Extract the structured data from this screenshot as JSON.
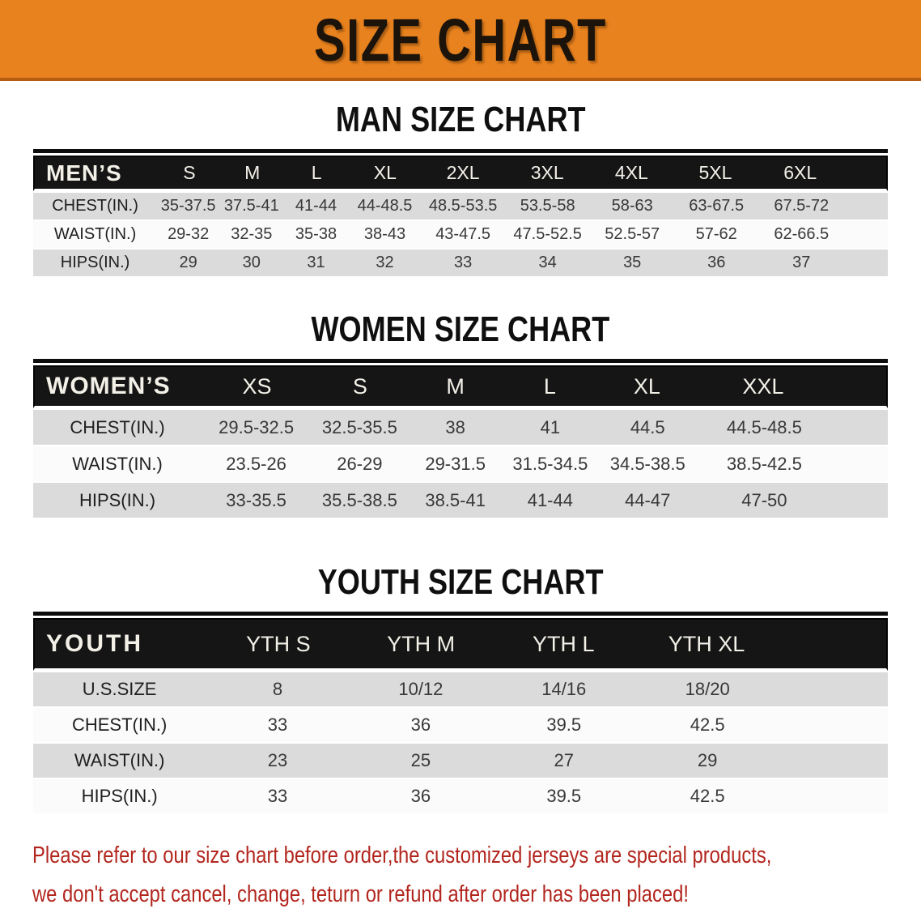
{
  "banner": {
    "title": "SIZE CHART"
  },
  "colors": {
    "banner_bg": "#E8821E",
    "banner_border": "#B45C10",
    "table_header_bg": "#151515",
    "stripe_gray": "#DBDBDB",
    "stripe_white": "#FBFBFB",
    "disclaimer_red": "#B2261E"
  },
  "man": {
    "heading": "MAN SIZE CHART",
    "label": "MEN’S",
    "sizes": [
      "S",
      "M",
      "L",
      "XL",
      "2XL",
      "3XL",
      "4XL",
      "5XL",
      "6XL"
    ],
    "rows": [
      {
        "label": "CHEST(IN.)",
        "values": [
          "35-37.5",
          "37.5-41",
          "41-44",
          "44-48.5",
          "48.5-53.5",
          "53.5-58",
          "58-63",
          "63-67.5",
          "67.5-72"
        ]
      },
      {
        "label": "WAIST(IN.)",
        "values": [
          "29-32",
          "32-35",
          "35-38",
          "38-43",
          "43-47.5",
          "47.5-52.5",
          "52.5-57",
          "57-62",
          "62-66.5"
        ]
      },
      {
        "label": "HIPS(IN.)",
        "values": [
          "29",
          "30",
          "31",
          "32",
          "33",
          "34",
          "35",
          "36",
          "37"
        ]
      }
    ]
  },
  "women": {
    "heading": "WOMEN SIZE CHART",
    "label": "WOMEN’S",
    "sizes": [
      "XS",
      "S",
      "M",
      "L",
      "XL",
      "XXL"
    ],
    "rows": [
      {
        "label": "CHEST(IN.)",
        "values": [
          "29.5-32.5",
          "32.5-35.5",
          "38",
          "41",
          "44.5",
          "44.5-48.5"
        ]
      },
      {
        "label": "WAIST(IN.)",
        "values": [
          "23.5-26",
          "26-29",
          "29-31.5",
          "31.5-34.5",
          "34.5-38.5",
          "38.5-42.5"
        ]
      },
      {
        "label": "HIPS(IN.)",
        "values": [
          "33-35.5",
          "35.5-38.5",
          "38.5-41",
          "41-44",
          "44-47",
          "47-50"
        ]
      }
    ]
  },
  "youth": {
    "heading": "YOUTH SIZE CHART",
    "label": "YOUTH",
    "sizes": [
      "YTH S",
      "YTH M",
      "YTH L",
      "YTH XL"
    ],
    "rows": [
      {
        "label": "U.S.SIZE",
        "values": [
          "8",
          "10/12",
          "14/16",
          "18/20"
        ]
      },
      {
        "label": "CHEST(IN.)",
        "values": [
          "33",
          "36",
          "39.5",
          "42.5"
        ]
      },
      {
        "label": "WAIST(IN.)",
        "values": [
          "23",
          "25",
          "27",
          "29"
        ]
      },
      {
        "label": "HIPS(IN.)",
        "values": [
          "33",
          "36",
          "39.5",
          "42.5"
        ]
      }
    ]
  },
  "disclaimer": {
    "line1": "Please refer to our size chart before order,the customized jerseys are special products,",
    "line2": "we don't accept cancel, change, teturn or refund after order has been placed!"
  }
}
